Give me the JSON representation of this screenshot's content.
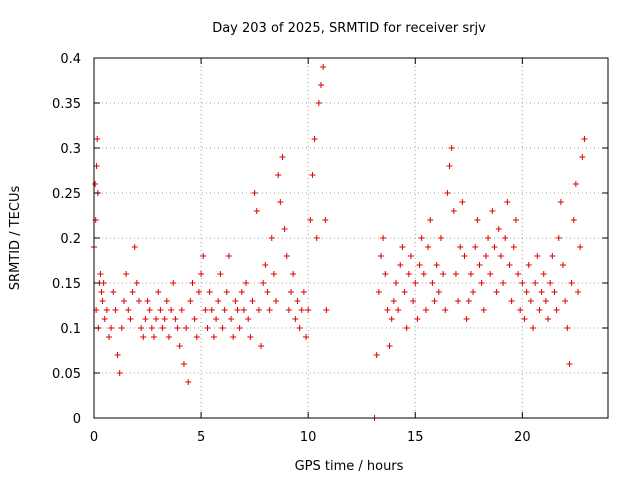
{
  "chart_data": {
    "type": "scatter",
    "title": "Day 203 of 2025, SRMTID for receiver srjv",
    "xlabel": "GPS time / hours",
    "ylabel": "SRMTID / TECUs",
    "xlim": [
      0,
      24
    ],
    "ylim": [
      0,
      0.4
    ],
    "xticks": [
      0,
      5,
      10,
      15,
      20
    ],
    "xtick_labels": [
      "0",
      "5",
      "10",
      "15",
      "20"
    ],
    "yticks": [
      0,
      0.05,
      0.1,
      0.15,
      0.2,
      0.25,
      0.3,
      0.35,
      0.4
    ],
    "ytick_labels": [
      "0",
      "0.05",
      "0.1",
      "0.15",
      "0.2",
      "0.25",
      "0.3",
      "0.35",
      "0.4"
    ],
    "grid": true,
    "marker": "plus",
    "color": "#e00000",
    "series": [
      {
        "points": [
          [
            0.0,
            0.19
          ],
          [
            0.05,
            0.26
          ],
          [
            0.08,
            0.22
          ],
          [
            0.1,
            0.12
          ],
          [
            0.12,
            0.28
          ],
          [
            0.15,
            0.31
          ],
          [
            0.18,
            0.25
          ],
          [
            0.2,
            0.1
          ],
          [
            0.25,
            0.15
          ],
          [
            0.3,
            0.16
          ],
          [
            0.35,
            0.14
          ],
          [
            0.4,
            0.13
          ],
          [
            0.45,
            0.15
          ],
          [
            0.5,
            0.11
          ],
          [
            0.6,
            0.12
          ],
          [
            0.7,
            0.09
          ],
          [
            0.8,
            0.1
          ],
          [
            0.9,
            0.14
          ],
          [
            1.0,
            0.12
          ],
          [
            1.1,
            0.07
          ],
          [
            1.2,
            0.05
          ],
          [
            1.3,
            0.1
          ],
          [
            1.4,
            0.13
          ],
          [
            1.5,
            0.16
          ],
          [
            1.6,
            0.12
          ],
          [
            1.7,
            0.11
          ],
          [
            1.8,
            0.14
          ],
          [
            1.9,
            0.19
          ],
          [
            2.0,
            0.15
          ],
          [
            2.1,
            0.13
          ],
          [
            2.2,
            0.1
          ],
          [
            2.3,
            0.09
          ],
          [
            2.4,
            0.11
          ],
          [
            2.5,
            0.13
          ],
          [
            2.6,
            0.12
          ],
          [
            2.7,
            0.1
          ],
          [
            2.8,
            0.09
          ],
          [
            2.9,
            0.11
          ],
          [
            3.0,
            0.14
          ],
          [
            3.1,
            0.12
          ],
          [
            3.2,
            0.1
          ],
          [
            3.3,
            0.11
          ],
          [
            3.4,
            0.13
          ],
          [
            3.5,
            0.09
          ],
          [
            3.6,
            0.12
          ],
          [
            3.7,
            0.15
          ],
          [
            3.8,
            0.11
          ],
          [
            3.9,
            0.1
          ],
          [
            4.0,
            0.08
          ],
          [
            4.1,
            0.12
          ],
          [
            4.2,
            0.06
          ],
          [
            4.3,
            0.1
          ],
          [
            4.4,
            0.04
          ],
          [
            4.5,
            0.13
          ],
          [
            4.6,
            0.15
          ],
          [
            4.7,
            0.11
          ],
          [
            4.8,
            0.09
          ],
          [
            4.9,
            0.14
          ],
          [
            5.0,
            0.16
          ],
          [
            5.1,
            0.18
          ],
          [
            5.2,
            0.12
          ],
          [
            5.3,
            0.1
          ],
          [
            5.4,
            0.14
          ],
          [
            5.5,
            0.12
          ],
          [
            5.6,
            0.09
          ],
          [
            5.7,
            0.11
          ],
          [
            5.8,
            0.13
          ],
          [
            5.9,
            0.16
          ],
          [
            6.0,
            0.1
          ],
          [
            6.1,
            0.12
          ],
          [
            6.2,
            0.14
          ],
          [
            6.3,
            0.18
          ],
          [
            6.4,
            0.11
          ],
          [
            6.5,
            0.09
          ],
          [
            6.6,
            0.13
          ],
          [
            6.7,
            0.12
          ],
          [
            6.8,
            0.1
          ],
          [
            6.9,
            0.14
          ],
          [
            7.0,
            0.12
          ],
          [
            7.1,
            0.15
          ],
          [
            7.2,
            0.11
          ],
          [
            7.3,
            0.09
          ],
          [
            7.4,
            0.13
          ],
          [
            7.5,
            0.25
          ],
          [
            7.6,
            0.23
          ],
          [
            7.7,
            0.12
          ],
          [
            7.8,
            0.08
          ],
          [
            7.9,
            0.15
          ],
          [
            8.0,
            0.17
          ],
          [
            8.1,
            0.14
          ],
          [
            8.2,
            0.12
          ],
          [
            8.3,
            0.2
          ],
          [
            8.4,
            0.16
          ],
          [
            8.5,
            0.13
          ],
          [
            8.6,
            0.27
          ],
          [
            8.7,
            0.24
          ],
          [
            8.8,
            0.29
          ],
          [
            8.9,
            0.21
          ],
          [
            9.0,
            0.18
          ],
          [
            9.1,
            0.12
          ],
          [
            9.2,
            0.14
          ],
          [
            9.3,
            0.16
          ],
          [
            9.4,
            0.11
          ],
          [
            9.5,
            0.13
          ],
          [
            9.6,
            0.1
          ],
          [
            9.7,
            0.12
          ],
          [
            9.8,
            0.14
          ],
          [
            9.9,
            0.09
          ],
          [
            10.0,
            0.12
          ],
          [
            10.1,
            0.22
          ],
          [
            10.2,
            0.27
          ],
          [
            10.3,
            0.31
          ],
          [
            10.4,
            0.2
          ],
          [
            10.5,
            0.35
          ],
          [
            10.6,
            0.37
          ],
          [
            10.7,
            0.39
          ],
          [
            10.8,
            0.22
          ],
          [
            10.85,
            0.12
          ],
          [
            13.1,
            0.0
          ],
          [
            13.2,
            0.07
          ],
          [
            13.3,
            0.14
          ],
          [
            13.4,
            0.18
          ],
          [
            13.5,
            0.2
          ],
          [
            13.6,
            0.16
          ],
          [
            13.7,
            0.12
          ],
          [
            13.8,
            0.08
          ],
          [
            13.9,
            0.11
          ],
          [
            14.0,
            0.13
          ],
          [
            14.1,
            0.15
          ],
          [
            14.2,
            0.12
          ],
          [
            14.3,
            0.17
          ],
          [
            14.4,
            0.19
          ],
          [
            14.5,
            0.14
          ],
          [
            14.6,
            0.1
          ],
          [
            14.7,
            0.16
          ],
          [
            14.8,
            0.18
          ],
          [
            14.9,
            0.13
          ],
          [
            15.0,
            0.15
          ],
          [
            15.1,
            0.11
          ],
          [
            15.2,
            0.17
          ],
          [
            15.3,
            0.2
          ],
          [
            15.4,
            0.16
          ],
          [
            15.5,
            0.12
          ],
          [
            15.6,
            0.19
          ],
          [
            15.7,
            0.22
          ],
          [
            15.8,
            0.15
          ],
          [
            15.9,
            0.13
          ],
          [
            16.0,
            0.17
          ],
          [
            16.1,
            0.14
          ],
          [
            16.2,
            0.2
          ],
          [
            16.3,
            0.16
          ],
          [
            16.4,
            0.12
          ],
          [
            16.5,
            0.25
          ],
          [
            16.6,
            0.28
          ],
          [
            16.7,
            0.3
          ],
          [
            16.8,
            0.23
          ],
          [
            16.9,
            0.16
          ],
          [
            17.0,
            0.13
          ],
          [
            17.1,
            0.19
          ],
          [
            17.2,
            0.24
          ],
          [
            17.3,
            0.18
          ],
          [
            17.4,
            0.11
          ],
          [
            17.5,
            0.13
          ],
          [
            17.6,
            0.16
          ],
          [
            17.7,
            0.14
          ],
          [
            17.8,
            0.19
          ],
          [
            17.9,
            0.22
          ],
          [
            18.0,
            0.17
          ],
          [
            18.1,
            0.15
          ],
          [
            18.2,
            0.12
          ],
          [
            18.3,
            0.18
          ],
          [
            18.4,
            0.2
          ],
          [
            18.5,
            0.16
          ],
          [
            18.6,
            0.23
          ],
          [
            18.7,
            0.19
          ],
          [
            18.8,
            0.14
          ],
          [
            18.9,
            0.21
          ],
          [
            19.0,
            0.18
          ],
          [
            19.1,
            0.15
          ],
          [
            19.2,
            0.2
          ],
          [
            19.3,
            0.24
          ],
          [
            19.4,
            0.17
          ],
          [
            19.5,
            0.13
          ],
          [
            19.6,
            0.19
          ],
          [
            19.7,
            0.22
          ],
          [
            19.8,
            0.16
          ],
          [
            19.9,
            0.12
          ],
          [
            20.0,
            0.15
          ],
          [
            20.1,
            0.11
          ],
          [
            20.2,
            0.14
          ],
          [
            20.3,
            0.17
          ],
          [
            20.4,
            0.13
          ],
          [
            20.5,
            0.1
          ],
          [
            20.6,
            0.15
          ],
          [
            20.7,
            0.18
          ],
          [
            20.8,
            0.12
          ],
          [
            20.9,
            0.14
          ],
          [
            21.0,
            0.16
          ],
          [
            21.1,
            0.13
          ],
          [
            21.2,
            0.11
          ],
          [
            21.3,
            0.15
          ],
          [
            21.4,
            0.18
          ],
          [
            21.5,
            0.14
          ],
          [
            21.6,
            0.12
          ],
          [
            21.7,
            0.2
          ],
          [
            21.8,
            0.24
          ],
          [
            21.9,
            0.17
          ],
          [
            22.0,
            0.13
          ],
          [
            22.1,
            0.1
          ],
          [
            22.2,
            0.06
          ],
          [
            22.3,
            0.15
          ],
          [
            22.4,
            0.22
          ],
          [
            22.5,
            0.26
          ],
          [
            22.6,
            0.14
          ],
          [
            22.7,
            0.19
          ],
          [
            22.8,
            0.29
          ],
          [
            22.9,
            0.31
          ]
        ]
      }
    ]
  }
}
